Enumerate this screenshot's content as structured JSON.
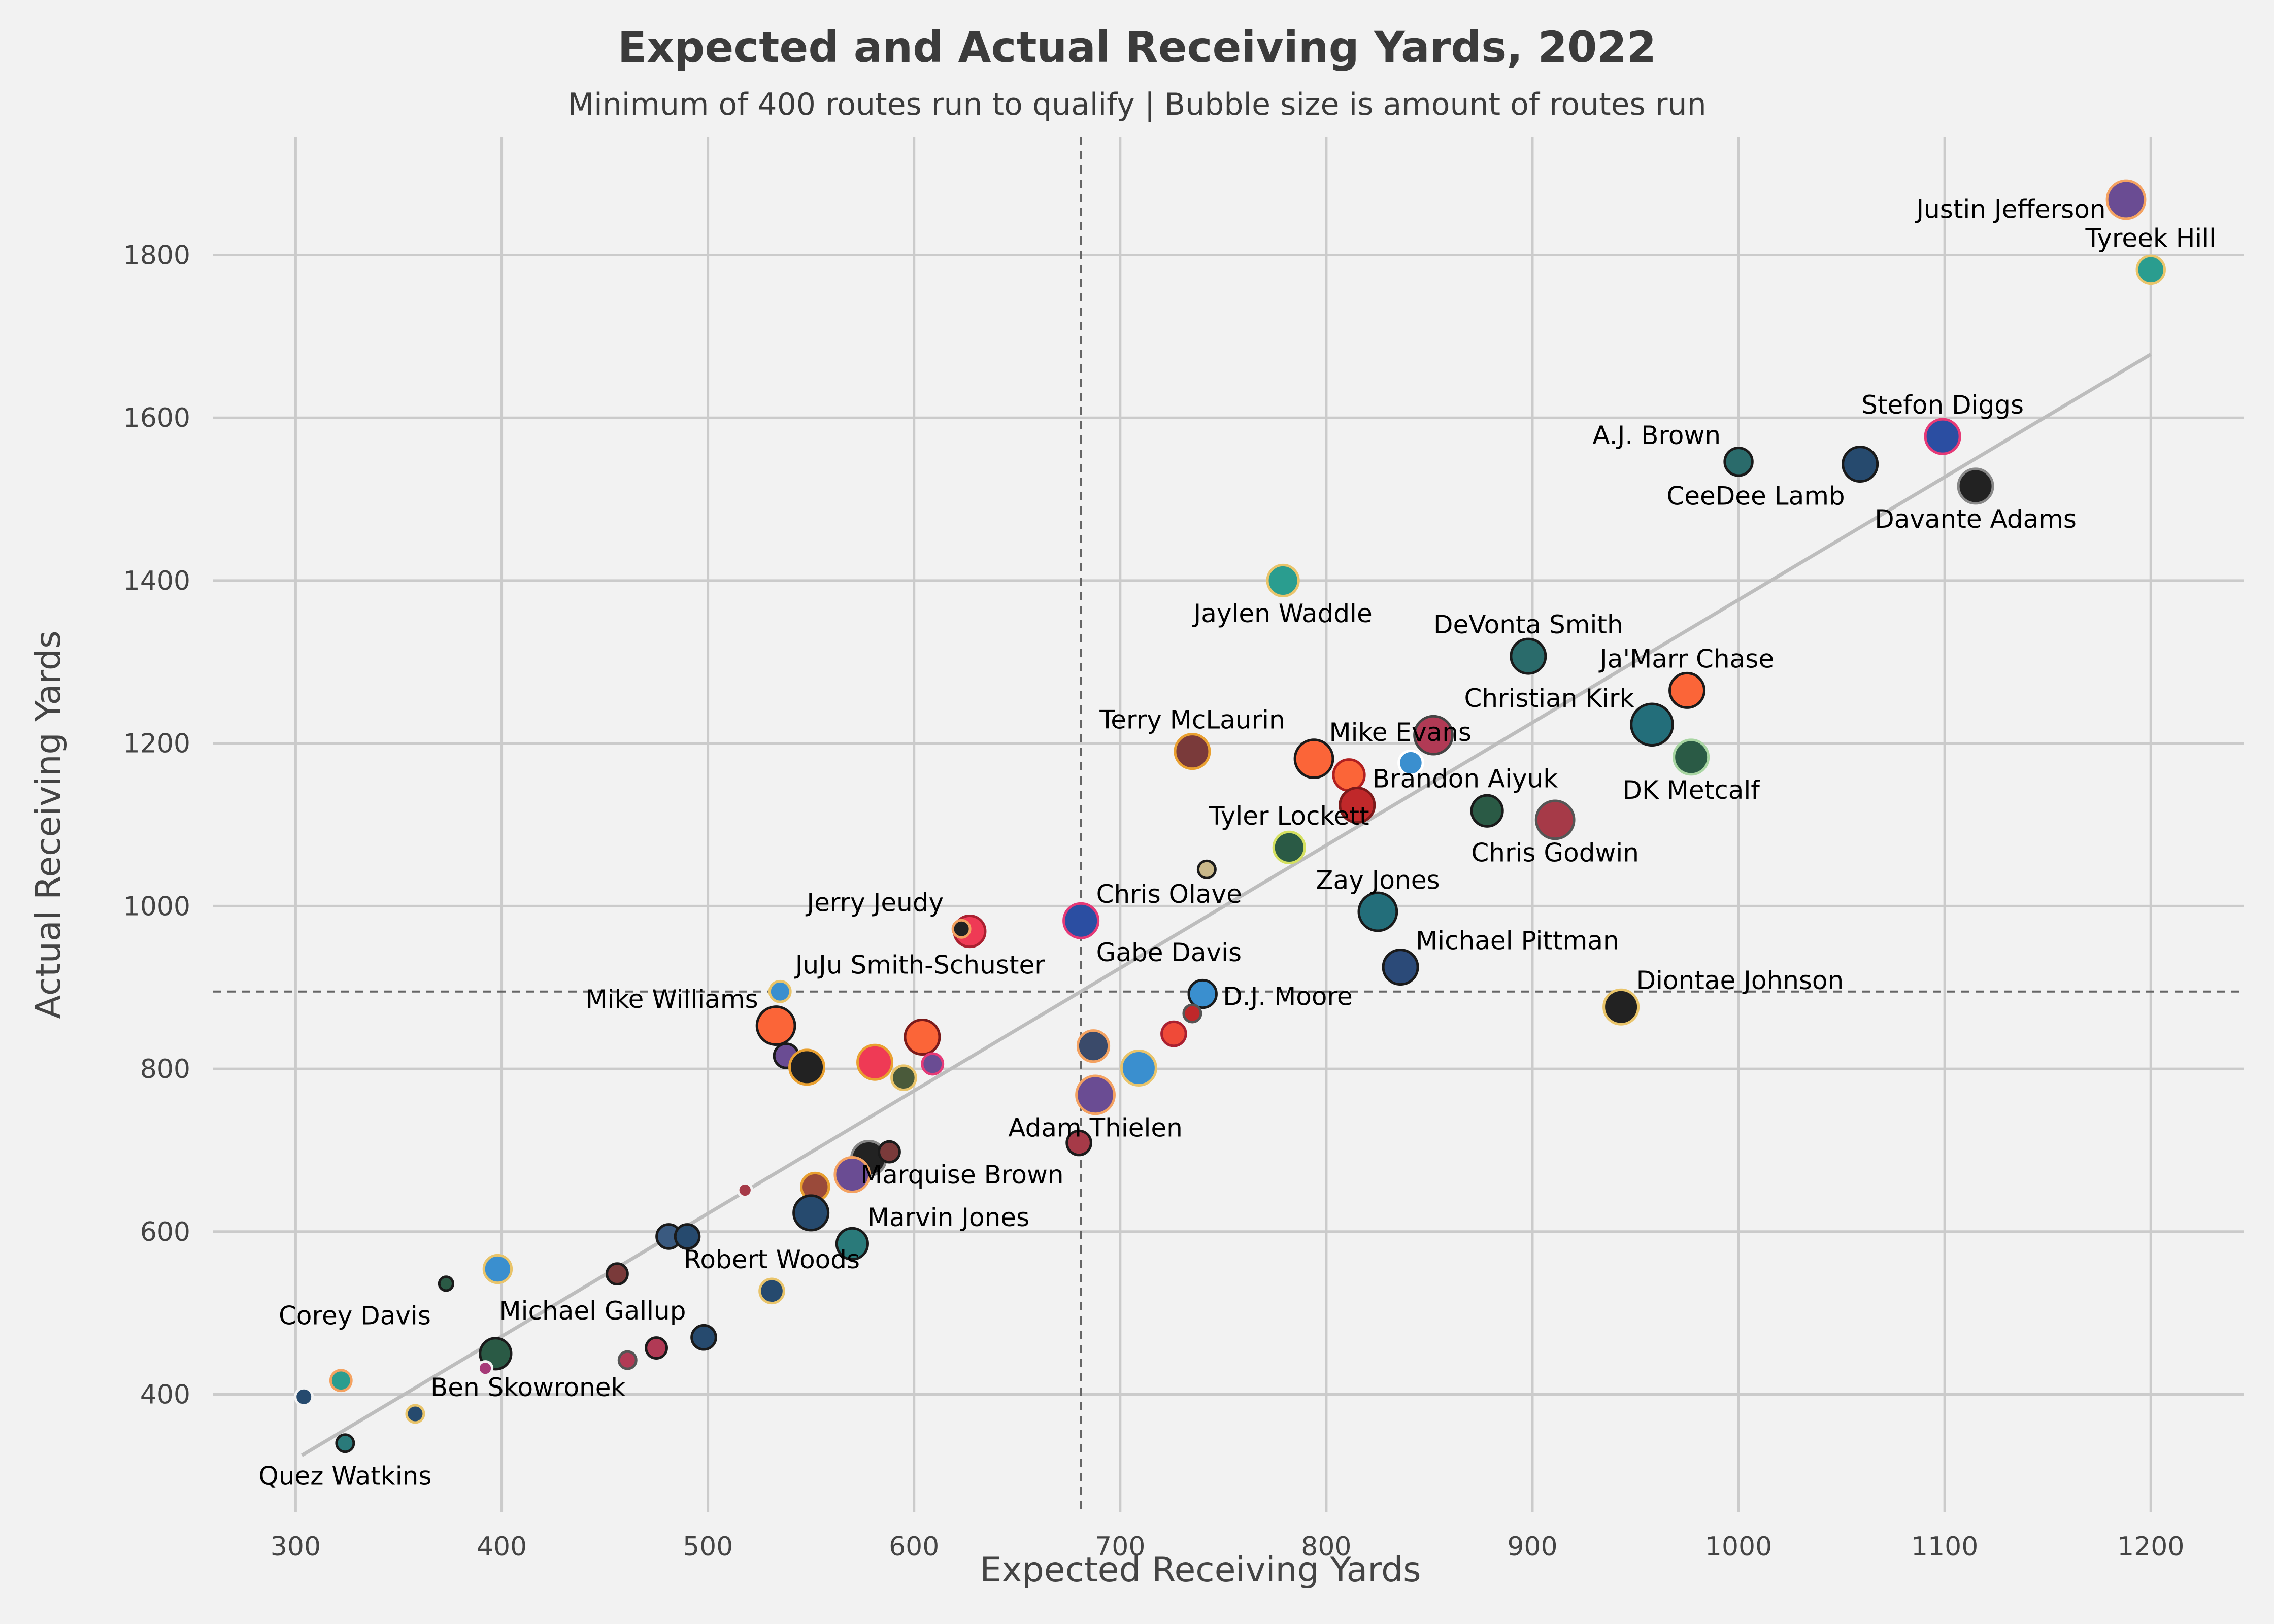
{
  "chart_data": {
    "type": "scatter",
    "title": "Expected and Actual Receiving Yards, 2022",
    "subtitle": "Minimum of 400 routes run to qualify | Bubble size is amount of routes run",
    "xlabel": "Expected Receiving Yards",
    "ylabel": "Actual Receiving Yards",
    "xlim": [
      260,
      1245
    ],
    "ylim": [
      255,
      1945
    ],
    "xticks": [
      300,
      400,
      500,
      600,
      700,
      800,
      900,
      1000,
      1100,
      1200
    ],
    "yticks": [
      400,
      600,
      800,
      1000,
      1200,
      1400,
      1600,
      1800
    ],
    "mean_x": 681,
    "mean_y": 895,
    "trendline": {
      "from": [
        303,
        325
      ],
      "to": [
        1200,
        1678
      ]
    },
    "background": "#f2f2f2",
    "points": [
      {
        "x": 1188,
        "y": 1868,
        "size": 11,
        "fill": "#6a4c93",
        "edge": "#f4a261",
        "label": "Justin Jefferson",
        "lpos": "left"
      },
      {
        "x": 1200,
        "y": 1782,
        "size": 8,
        "fill": "#2a9d8f",
        "edge": "#e9c46a",
        "label": "Tyreek Hill",
        "lpos": "above"
      },
      {
        "x": 1099,
        "y": 1577,
        "size": 10,
        "fill": "#2b4ea2",
        "edge": "#e63976",
        "label": "Stefon Diggs",
        "lpos": "above"
      },
      {
        "x": 1000,
        "y": 1546,
        "size": 8,
        "fill": "#2a6b6b",
        "edge": "#1a1a1a",
        "label": "A.J. Brown",
        "lpos": "aboveleft"
      },
      {
        "x": 1059,
        "y": 1543,
        "size": 10,
        "fill": "#264a6e",
        "edge": "#1a1a1a",
        "label": "CeeDee Lamb",
        "lpos": "belowleft"
      },
      {
        "x": 1115,
        "y": 1516,
        "size": 10,
        "fill": "#222222",
        "edge": "#888888",
        "label": "Davante Adams",
        "lpos": "below"
      },
      {
        "x": 779,
        "y": 1400,
        "size": 9,
        "fill": "#2a9d8f",
        "edge": "#e9c46a",
        "label": "Jaylen Waddle",
        "lpos": "below"
      },
      {
        "x": 898,
        "y": 1307,
        "size": 10,
        "fill": "#2a6b6b",
        "edge": "#1a1a1a",
        "label": "DeVonta Smith",
        "lpos": "above"
      },
      {
        "x": 975,
        "y": 1265,
        "size": 10,
        "fill": "#fb6538",
        "edge": "#1a1a1a",
        "label": "Ja'Marr Chase",
        "lpos": "above"
      },
      {
        "x": 958,
        "y": 1223,
        "size": 12,
        "fill": "#236e7a",
        "edge": "#1a1a1a",
        "label": "Christian Kirk",
        "lpos": "aboveleft"
      },
      {
        "x": 852,
        "y": 1210,
        "size": 11,
        "fill": "#b13a55",
        "edge": "#444444",
        "label": "",
        "lpos": ""
      },
      {
        "x": 977,
        "y": 1183,
        "size": 10,
        "fill": "#2a5a45",
        "edge": "#a8d5a2",
        "label": "DK Metcalf",
        "lpos": "below"
      },
      {
        "x": 735,
        "y": 1190,
        "size": 10,
        "fill": "#7a3a3a",
        "edge": "#e9a030",
        "label": "Terry McLaurin",
        "lpos": "above"
      },
      {
        "x": 794,
        "y": 1181,
        "size": 11,
        "fill": "#fb6538",
        "edge": "#1a1a1a",
        "label": "Mike Evans",
        "lpos": "aboveright"
      },
      {
        "x": 811,
        "y": 1161,
        "size": 9,
        "fill": "#fb6538",
        "edge": "#b02020",
        "label": "",
        "lpos": ""
      },
      {
        "x": 841,
        "y": 1176,
        "size": 7,
        "fill": "#3a8fcf",
        "edge": "#ffffff",
        "label": "",
        "lpos": ""
      },
      {
        "x": 815,
        "y": 1124,
        "size": 10,
        "fill": "#c0282a",
        "edge": "#7a1a1a",
        "label": "Brandon Aiyuk",
        "lpos": "aboveright"
      },
      {
        "x": 878,
        "y": 1117,
        "size": 9,
        "fill": "#2a5a45",
        "edge": "#1a1a1a",
        "label": "",
        "lpos": ""
      },
      {
        "x": 911,
        "y": 1106,
        "size": 11,
        "fill": "#a63a48",
        "edge": "#555555",
        "label": "Chris Godwin",
        "lpos": "below"
      },
      {
        "x": 782,
        "y": 1072,
        "size": 9,
        "fill": "#2a5a45",
        "edge": "#d4e060",
        "label": "Tyler Lockett",
        "lpos": "above"
      },
      {
        "x": 742,
        "y": 1045,
        "size": 5,
        "fill": "#c9b88a",
        "edge": "#1a1a1a",
        "label": "",
        "lpos": ""
      },
      {
        "x": 825,
        "y": 993,
        "size": 11,
        "fill": "#236e7a",
        "edge": "#1a1a1a",
        "label": "Zay Jones",
        "lpos": "above"
      },
      {
        "x": 681,
        "y": 982,
        "size": 10,
        "fill": "#2b4ea2",
        "edge": "#e63976",
        "label": "Chris Olave",
        "lpos": "aboveright"
      },
      {
        "x": 681,
        "y": 982,
        "size": 0,
        "fill": "none",
        "edge": "none",
        "label": "Gabe Davis",
        "lpos": "belowright"
      },
      {
        "x": 627,
        "y": 969,
        "size": 9,
        "fill": "#ef3a55",
        "edge": "#aa2030",
        "label": "",
        "lpos": ""
      },
      {
        "x": 623,
        "y": 972,
        "size": 5,
        "fill": "#222222",
        "edge": "#f4a261",
        "label": "Jerry Jeudy",
        "lpos": "aboveleft"
      },
      {
        "x": 836,
        "y": 925,
        "size": 10,
        "fill": "#2b4a78",
        "edge": "#1a1a1a",
        "label": "Michael Pittman",
        "lpos": "aboveright"
      },
      {
        "x": 535,
        "y": 895,
        "size": 6,
        "fill": "#3a8fcf",
        "edge": "#e9c46a",
        "label": "JuJu Smith-Schuster",
        "lpos": "aboveright"
      },
      {
        "x": 533,
        "y": 853,
        "size": 11,
        "fill": "#fb6538",
        "edge": "#1a1a1a",
        "label": "Mike Williams",
        "lpos": "aboveleft"
      },
      {
        "x": 740,
        "y": 892,
        "size": 8,
        "fill": "#3a8fcf",
        "edge": "#1a1a1a",
        "label": "D.J. Moore",
        "lpos": "right"
      },
      {
        "x": 943,
        "y": 876,
        "size": 10,
        "fill": "#222222",
        "edge": "#e9c46a",
        "label": "Diontae Johnson",
        "lpos": "aboveright"
      },
      {
        "x": 604,
        "y": 839,
        "size": 10,
        "fill": "#fb6538",
        "edge": "#7a1a1a",
        "label": "",
        "lpos": ""
      },
      {
        "x": 735,
        "y": 868,
        "size": 5,
        "fill": "#c0282a",
        "edge": "#555555",
        "label": "",
        "lpos": ""
      },
      {
        "x": 726,
        "y": 843,
        "size": 7,
        "fill": "#ef4a38",
        "edge": "#aa2030",
        "label": "",
        "lpos": ""
      },
      {
        "x": 538,
        "y": 816,
        "size": 7,
        "fill": "#6a4c93",
        "edge": "#1a1a1a",
        "label": "",
        "lpos": ""
      },
      {
        "x": 548,
        "y": 802,
        "size": 10,
        "fill": "#222222",
        "edge": "#e9a030",
        "label": "",
        "lpos": ""
      },
      {
        "x": 581,
        "y": 808,
        "size": 10,
        "fill": "#ef3a55",
        "edge": "#e9a030",
        "label": "",
        "lpos": ""
      },
      {
        "x": 609,
        "y": 806,
        "size": 6,
        "fill": "#6a4c93",
        "edge": "#e63976",
        "label": "",
        "lpos": ""
      },
      {
        "x": 595,
        "y": 789,
        "size": 7,
        "fill": "#4a5a3a",
        "edge": "#e9c46a",
        "label": "",
        "lpos": ""
      },
      {
        "x": 687,
        "y": 828,
        "size": 9,
        "fill": "#3a4a6a",
        "edge": "#f4a261",
        "label": "",
        "lpos": ""
      },
      {
        "x": 709,
        "y": 801,
        "size": 10,
        "fill": "#3a8fcf",
        "edge": "#e9c46a",
        "label": "",
        "lpos": ""
      },
      {
        "x": 688,
        "y": 768,
        "size": 11,
        "fill": "#6a4c93",
        "edge": "#f4a261",
        "label": "Adam Thielen",
        "lpos": "below"
      },
      {
        "x": 680,
        "y": 709,
        "size": 7,
        "fill": "#a63a48",
        "edge": "#1a1a1a",
        "label": "Marquise Brown",
        "lpos": "belowleft"
      },
      {
        "x": 578,
        "y": 690,
        "size": 10,
        "fill": "#222222",
        "edge": "#888888",
        "label": "",
        "lpos": ""
      },
      {
        "x": 588,
        "y": 698,
        "size": 6,
        "fill": "#7a3a3a",
        "edge": "#1a1a1a",
        "label": "",
        "lpos": ""
      },
      {
        "x": 570,
        "y": 670,
        "size": 10,
        "fill": "#6a4c93",
        "edge": "#f4a261",
        "label": "",
        "lpos": ""
      },
      {
        "x": 552,
        "y": 655,
        "size": 8,
        "fill": "#9a4a3a",
        "edge": "#e9a030",
        "label": "",
        "lpos": ""
      },
      {
        "x": 518,
        "y": 651,
        "size": 4,
        "fill": "#a63a48",
        "edge": "#f2f2f2",
        "label": "",
        "lpos": ""
      },
      {
        "x": 550,
        "y": 623,
        "size": 10,
        "fill": "#264a6e",
        "edge": "#1a1a1a",
        "label": "",
        "lpos": ""
      },
      {
        "x": 570,
        "y": 585,
        "size": 9,
        "fill": "#2a7a7a",
        "edge": "#1a1a1a",
        "label": "Marvin Jones",
        "lpos": "aboveright"
      },
      {
        "x": 481,
        "y": 594,
        "size": 7,
        "fill": "#3a5a80",
        "edge": "#1a1a1a",
        "label": "",
        "lpos": ""
      },
      {
        "x": 490,
        "y": 594,
        "size": 7,
        "fill": "#264a6e",
        "edge": "#1a1a1a",
        "label": "",
        "lpos": ""
      },
      {
        "x": 531,
        "y": 527,
        "size": 7,
        "fill": "#264a6e",
        "edge": "#e9c46a",
        "label": "Robert Woods",
        "lpos": "above"
      },
      {
        "x": 456,
        "y": 548,
        "size": 6,
        "fill": "#7a3a3a",
        "edge": "#1a1a1a",
        "label": "",
        "lpos": ""
      },
      {
        "x": 398,
        "y": 554,
        "size": 8,
        "fill": "#3a8fcf",
        "edge": "#e9c46a",
        "label": "",
        "lpos": ""
      },
      {
        "x": 373,
        "y": 536,
        "size": 4,
        "fill": "#2a5a45",
        "edge": "#1a1a1a",
        "label": "Corey Davis",
        "lpos": "belowleft"
      },
      {
        "x": 498,
        "y": 470,
        "size": 7,
        "fill": "#264a6e",
        "edge": "#1a1a1a",
        "label": "Michael Gallup",
        "lpos": "aboveleft"
      },
      {
        "x": 475,
        "y": 457,
        "size": 6,
        "fill": "#b13a55",
        "edge": "#1a1a1a",
        "label": "",
        "lpos": ""
      },
      {
        "x": 461,
        "y": 442,
        "size": 5,
        "fill": "#b13a55",
        "edge": "#555555",
        "label": "",
        "lpos": ""
      },
      {
        "x": 397,
        "y": 450,
        "size": 9,
        "fill": "#2a5a45",
        "edge": "#1a1a1a",
        "label": "",
        "lpos": ""
      },
      {
        "x": 392,
        "y": 432,
        "size": 4,
        "fill": "#a63a78",
        "edge": "#f2f2f2",
        "label": "",
        "lpos": ""
      },
      {
        "x": 322,
        "y": 417,
        "size": 6,
        "fill": "#2a9d8f",
        "edge": "#f4a261",
        "label": "",
        "lpos": ""
      },
      {
        "x": 358,
        "y": 376,
        "size": 5,
        "fill": "#264a6e",
        "edge": "#e9c46a",
        "label": "Ben Skowronek",
        "lpos": "aboveright"
      },
      {
        "x": 304,
        "y": 397,
        "size": 5,
        "fill": "#264a6e",
        "edge": "#f2f2f2",
        "label": "",
        "lpos": ""
      },
      {
        "x": 324,
        "y": 340,
        "size": 5,
        "fill": "#2a7a7a",
        "edge": "#1a1a1a",
        "label": "Quez Watkins",
        "lpos": "below"
      }
    ]
  }
}
